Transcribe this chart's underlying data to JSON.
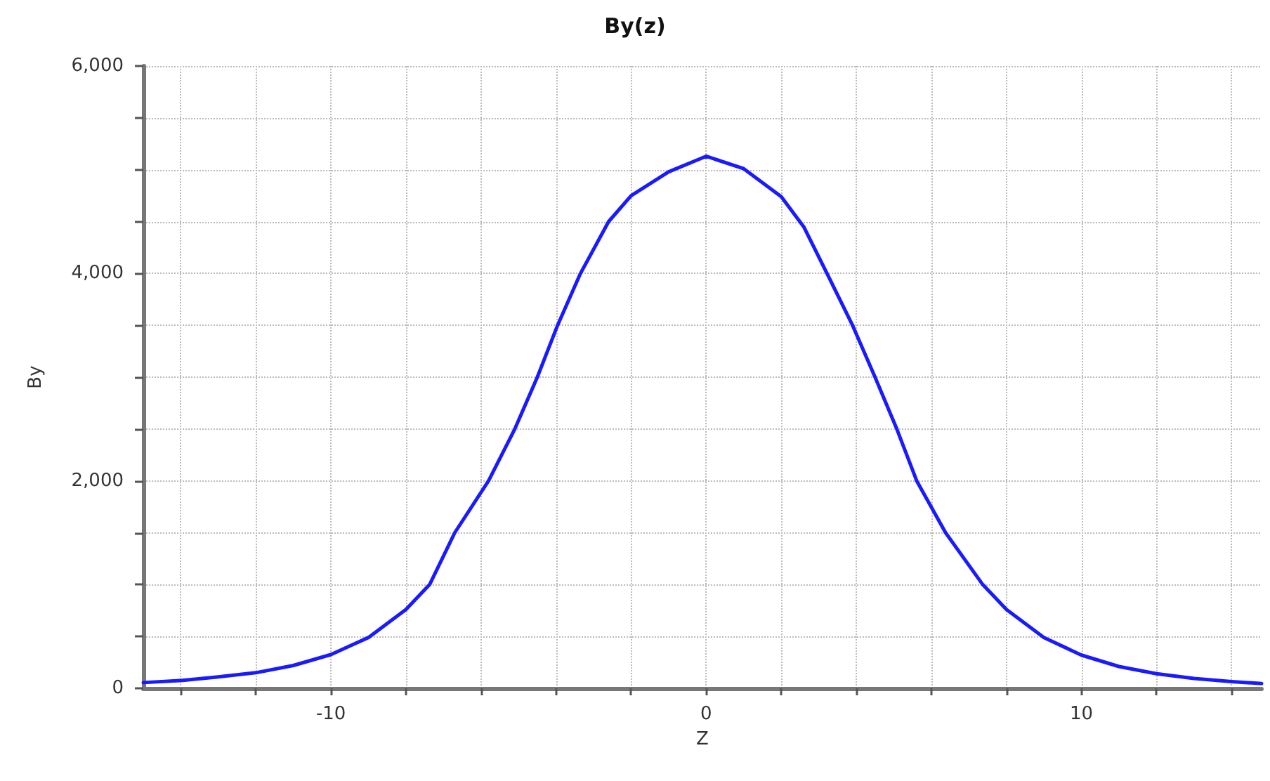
{
  "chart_data": {
    "type": "line",
    "title": "By(z)",
    "xlabel": "Z",
    "ylabel": "By",
    "x": [
      -15,
      -14,
      -13,
      -12,
      -11,
      -10,
      -9,
      -8,
      -7.37,
      -6.7,
      -5.8,
      -5.1,
      -4.5,
      -3.96,
      -3.35,
      -2.6,
      -2,
      -1,
      0,
      1,
      2,
      2.6,
      3.22,
      3.9,
      4.5,
      5.08,
      5.61,
      6.38,
      7.37,
      8,
      9,
      10,
      11,
      12,
      13,
      14,
      14.8
    ],
    "series": [
      {
        "color": "#1a1aff",
        "values": [
          55,
          75,
          110,
          150,
          220,
          325,
          490,
          760,
          1000,
          1500,
          2000,
          2500,
          3000,
          3500,
          4000,
          4500,
          4750,
          4980,
          5130,
          5010,
          4740,
          4450,
          4000,
          3500,
          3000,
          2500,
          2000,
          1500,
          1000,
          760,
          490,
          320,
          210,
          140,
          95,
          65,
          45
        ]
      }
    ],
    "xlim": [
      -15,
      14.8
    ],
    "xticks": [
      {
        "value": -14,
        "label": null
      },
      {
        "value": -12,
        "label": null
      },
      -10,
      {
        "value": -8,
        "label": null
      },
      {
        "value": -6,
        "label": null
      },
      {
        "value": -4,
        "label": null
      },
      {
        "value": -2,
        "label": null
      },
      0,
      {
        "value": 2,
        "label": null
      },
      {
        "value": 4,
        "label": null
      },
      {
        "value": 6,
        "label": null
      },
      {
        "value": 8,
        "label": null
      },
      10,
      {
        "value": 12,
        "label": null
      },
      {
        "value": 14,
        "label": null
      }
    ],
    "ylim": [
      0,
      6000
    ],
    "yticks": [
      0,
      {
        "value": 500,
        "label": null
      },
      {
        "value": 1000,
        "label": null
      },
      {
        "value": 1500,
        "label": null
      },
      {
        "value": 2000,
        "label": "2,000"
      },
      {
        "value": 2500,
        "label": null
      },
      {
        "value": 3000,
        "label": null
      },
      {
        "value": 3500,
        "label": null
      },
      {
        "value": 4000,
        "label": "4,000"
      },
      {
        "value": 4500,
        "label": null
      },
      {
        "value": 5000,
        "label": null
      },
      {
        "value": 5500,
        "label": null
      },
      {
        "value": 6000,
        "label": "6,000"
      }
    ],
    "grid": true,
    "marker": "none",
    "line_style": "solid"
  }
}
